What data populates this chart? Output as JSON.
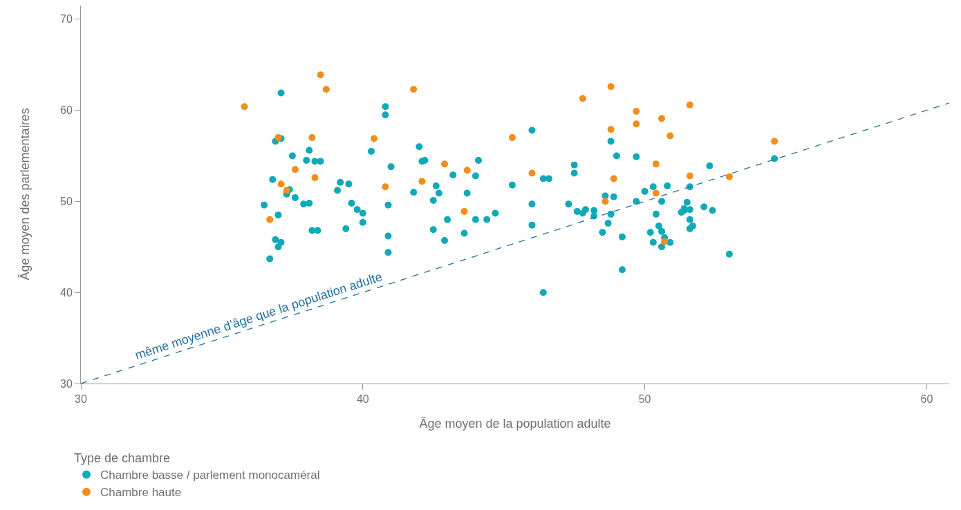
{
  "chart_data": {
    "type": "scatter",
    "xlabel": "Âge moyen de la population adulte",
    "ylabel": "Âge moyen des parlementaires",
    "legend_title": "Type de chambre",
    "legend": "bottom left",
    "grid": false,
    "marker": "circle",
    "xlim": [
      30,
      60.8
    ],
    "xticks": [
      30,
      40,
      50,
      60
    ],
    "ylim": [
      30,
      71.5
    ],
    "yticks": [
      30,
      40,
      50,
      60,
      70
    ],
    "annotations": [
      "même moyenne d’âge que la population adulte"
    ],
    "series": [
      {
        "name": "Chambre basse / parlement monocaméral",
        "color": "#10a9b8",
        "x": [
          36.5,
          36.7,
          36.8,
          36.9,
          36.9,
          37.0,
          37.0,
          37.1,
          37.1,
          37.1,
          37.3,
          37.4,
          37.5,
          37.6,
          37.9,
          38.0,
          38.1,
          38.1,
          38.2,
          38.3,
          38.4,
          38.5,
          39.1,
          39.2,
          39.4,
          39.5,
          39.6,
          39.8,
          40.0,
          40.0,
          40.3,
          40.8,
          40.8,
          40.9,
          40.9,
          40.9,
          41.0,
          41.8,
          42.0,
          42.1,
          42.2,
          42.5,
          42.6,
          42.7,
          42.5,
          42.9,
          43.0,
          43.2,
          43.6,
          43.7,
          44.0,
          44.1,
          44.0,
          44.4,
          44.7,
          45.3,
          46.0,
          46.0,
          46.0,
          46.4,
          46.6,
          46.4,
          47.3,
          47.5,
          47.5,
          47.6,
          47.8,
          47.9,
          48.2,
          48.2,
          48.5,
          48.6,
          48.7,
          48.8,
          48.8,
          48.9,
          49.0,
          49.2,
          49.2,
          49.7,
          49.7,
          50.0,
          50.2,
          50.3,
          50.3,
          50.4,
          50.5,
          50.6,
          50.6,
          50.6,
          50.7,
          50.8,
          50.9,
          51.3,
          51.4,
          51.4,
          51.5,
          51.6,
          51.6,
          51.6,
          51.6,
          51.7,
          52.1,
          52.4,
          52.3,
          53.0,
          54.6
        ],
        "values": [
          49.6,
          43.7,
          52.4,
          56.6,
          45.8,
          45.0,
          48.5,
          61.9,
          45.5,
          56.9,
          50.8,
          51.3,
          55.0,
          50.4,
          49.7,
          54.5,
          55.6,
          49.8,
          46.8,
          54.4,
          46.8,
          54.4,
          51.2,
          52.1,
          47.0,
          51.9,
          49.8,
          49.1,
          48.7,
          47.7,
          55.5,
          60.4,
          59.5,
          49.6,
          46.2,
          44.4,
          53.8,
          51.0,
          56.0,
          54.4,
          54.5,
          50.1,
          51.7,
          50.9,
          46.9,
          45.7,
          48.0,
          52.9,
          46.5,
          50.9,
          52.8,
          54.5,
          48.0,
          48.0,
          48.7,
          51.8,
          49.7,
          47.4,
          57.8,
          52.5,
          52.5,
          40.0,
          49.7,
          54.0,
          53.1,
          48.9,
          48.7,
          49.1,
          49.0,
          48.4,
          46.6,
          50.6,
          47.6,
          48.6,
          56.6,
          50.5,
          55.0,
          46.1,
          42.5,
          54.9,
          50.0,
          51.1,
          46.6,
          51.6,
          45.5,
          48.6,
          47.3,
          46.7,
          50.0,
          45.0,
          46.0,
          51.7,
          45.5,
          48.8,
          49.0,
          49.2,
          49.9,
          51.6,
          49.1,
          48.0,
          47.0,
          47.3,
          49.4,
          49.0,
          53.9,
          44.2,
          54.7
        ]
      },
      {
        "name": "Chambre haute",
        "color": "#f28e1c",
        "x": [
          35.8,
          36.7,
          37.0,
          37.1,
          37.3,
          37.6,
          38.2,
          38.3,
          38.5,
          38.7,
          40.4,
          40.8,
          41.8,
          42.1,
          42.9,
          43.6,
          43.7,
          45.3,
          46.0,
          47.8,
          48.6,
          48.8,
          48.8,
          48.9,
          49.7,
          49.7,
          50.4,
          50.4,
          50.6,
          50.7,
          50.9,
          51.6,
          51.6,
          53.0,
          54.6
        ],
        "values": [
          60.4,
          48.0,
          57.0,
          51.9,
          51.2,
          53.5,
          57.0,
          52.6,
          63.9,
          62.3,
          56.9,
          51.6,
          62.3,
          52.2,
          54.1,
          48.9,
          53.4,
          57.0,
          53.1,
          61.3,
          50.0,
          62.6,
          57.9,
          52.5,
          59.9,
          58.5,
          54.1,
          50.9,
          59.1,
          45.6,
          57.2,
          60.6,
          52.8,
          52.7,
          56.6
        ]
      },
      {
        "type": "line",
        "color": "#1f6f9f",
        "line_style": "dashed",
        "marker": "none",
        "x": [
          30,
          60.8
        ],
        "values": [
          30,
          60.8
        ]
      }
    ]
  }
}
